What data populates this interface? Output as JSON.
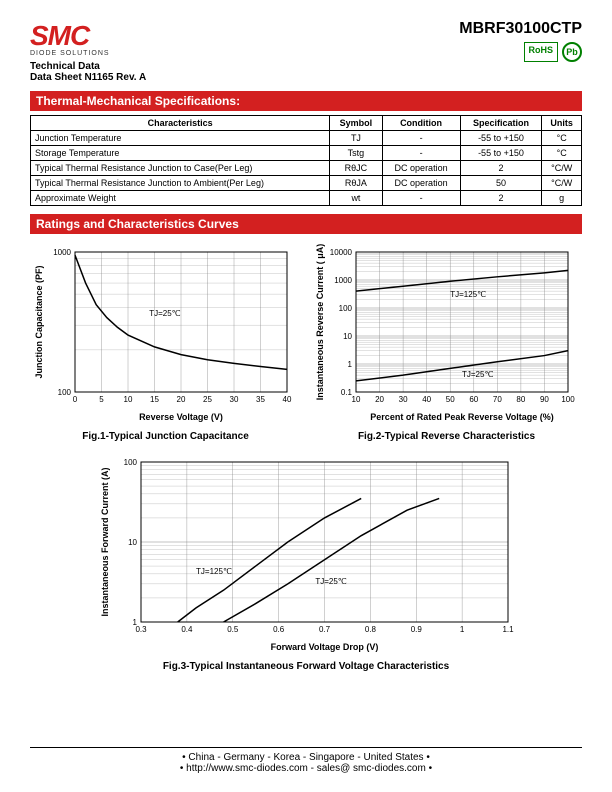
{
  "header": {
    "logo_text": "SMC",
    "logo_sub": "DIODE SOLUTIONS",
    "part_number": "MBRF30100CTP",
    "tech_data": "Technical Data",
    "datasheet": "Data Sheet N1165 Rev. A",
    "rohs": "RoHS",
    "pb": "Pb"
  },
  "section1_title": "Thermal-Mechanical Specifications:",
  "spec_table": {
    "columns": [
      "Characteristics",
      "Symbol",
      "Condition",
      "Specification",
      "Units"
    ],
    "rows": [
      [
        "Junction Temperature",
        "TJ",
        "-",
        "-55 to +150",
        "°C"
      ],
      [
        "Storage Temperature",
        "Tstg",
        "-",
        "-55 to +150",
        "°C"
      ],
      [
        "Typical Thermal Resistance Junction to Case(Per Leg)",
        "RθJC",
        "DC operation",
        "2",
        "°C/W"
      ],
      [
        "Typical Thermal Resistance Junction to Ambient(Per Leg)",
        "RθJA",
        "DC operation",
        "50",
        "°C/W"
      ],
      [
        "Approximate Weight",
        "wt",
        "-",
        "2",
        "g"
      ]
    ]
  },
  "section2_title": "Ratings and Characteristics Curves",
  "chart1": {
    "caption": "Fig.1-Typical Junction Capacitance",
    "xlabel": "Reverse Voltage (V)",
    "ylabel": "Junction Capacitance (PF)",
    "curve_label": "TJ=25℃",
    "xlim": [
      0,
      40
    ],
    "xticks": [
      0,
      5,
      10,
      15,
      20,
      25,
      30,
      35,
      40
    ],
    "ylim_log": [
      100,
      1000
    ],
    "curve": [
      [
        0,
        950
      ],
      [
        2,
        600
      ],
      [
        4,
        420
      ],
      [
        6,
        340
      ],
      [
        8,
        290
      ],
      [
        10,
        255
      ],
      [
        15,
        210
      ],
      [
        20,
        185
      ],
      [
        25,
        170
      ],
      [
        30,
        160
      ],
      [
        35,
        152
      ],
      [
        40,
        145
      ]
    ],
    "bg": "#ffffff",
    "grid": "#888888",
    "line": "#000000"
  },
  "chart2": {
    "caption": "Fig.2-Typical Reverse Characteristics",
    "xlabel": "Percent of Rated Peak Reverse Voltage (%)",
    "ylabel": "Instantaneous Reverse Current (   μA)",
    "xlim": [
      10,
      100
    ],
    "xticks": [
      10,
      20,
      30,
      40,
      50,
      60,
      70,
      80,
      90,
      100
    ],
    "ylim_log": [
      0.1,
      10000
    ],
    "curves": [
      {
        "label": "TJ=125℃",
        "pts": [
          [
            10,
            400
          ],
          [
            30,
            600
          ],
          [
            50,
            900
          ],
          [
            70,
            1300
          ],
          [
            90,
            1800
          ],
          [
            100,
            2200
          ]
        ]
      },
      {
        "label": "TJ=25℃",
        "pts": [
          [
            10,
            0.25
          ],
          [
            30,
            0.4
          ],
          [
            50,
            0.7
          ],
          [
            70,
            1.2
          ],
          [
            90,
            2.0
          ],
          [
            100,
            3.0
          ]
        ]
      }
    ],
    "bg": "#ffffff",
    "grid": "#888888",
    "line": "#000000"
  },
  "chart3": {
    "caption": "Fig.3-Typical Instantaneous Forward Voltage Characteristics",
    "xlabel": "Forward Voltage Drop (V)",
    "ylabel": "Instantaneous Forward Current (A)",
    "xlim": [
      0.3,
      1.1
    ],
    "xticks": [
      0.3,
      0.4,
      0.5,
      0.6,
      0.7,
      0.8,
      0.9,
      1.0,
      1.1
    ],
    "ylim_log": [
      1,
      100
    ],
    "curves": [
      {
        "label": "TJ=125℃",
        "pts": [
          [
            0.38,
            1
          ],
          [
            0.42,
            1.5
          ],
          [
            0.48,
            2.5
          ],
          [
            0.55,
            5
          ],
          [
            0.62,
            10
          ],
          [
            0.7,
            20
          ],
          [
            0.78,
            35
          ]
        ]
      },
      {
        "label": "TJ=25℃",
        "pts": [
          [
            0.48,
            1
          ],
          [
            0.55,
            1.7
          ],
          [
            0.62,
            3
          ],
          [
            0.7,
            6
          ],
          [
            0.78,
            12
          ],
          [
            0.88,
            25
          ],
          [
            0.95,
            35
          ]
        ]
      }
    ],
    "bg": "#ffffff",
    "grid": "#888888",
    "line": "#000000"
  },
  "footer": {
    "locations": "• China  -  Germany  -  Korea  -  Singapore  -  United States •",
    "contact": "• http://www.smc-diodes.com  -  sales@ smc-diodes.com •"
  }
}
